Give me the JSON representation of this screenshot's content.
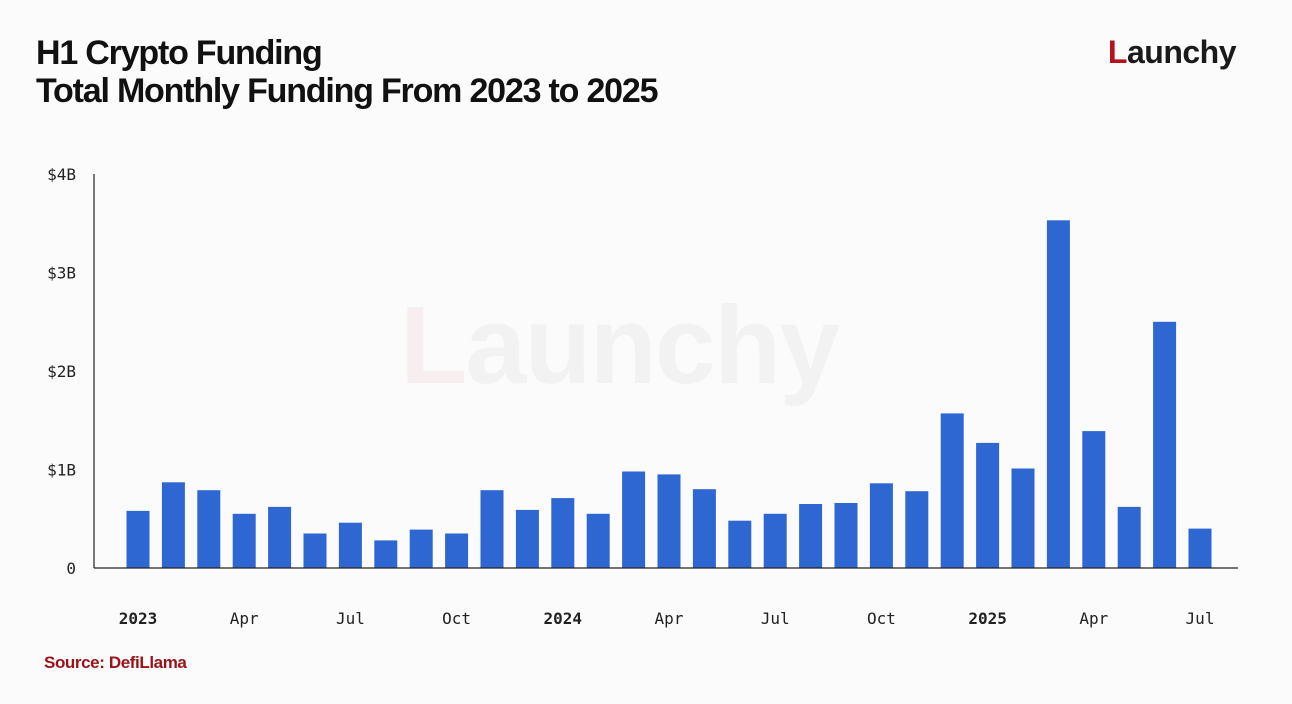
{
  "header": {
    "title_line1": "H1 Crypto Funding",
    "title_line2": "Total Monthly Funding From 2023 to 2025"
  },
  "logo": {
    "initial": "L",
    "rest": "aunchy"
  },
  "watermark": {
    "initial": "L",
    "rest": "aunchy"
  },
  "source": "Source: DefiLlama",
  "colors": {
    "bar": "#2e67d1",
    "axis": "#222222",
    "brand_red": "#b5121b"
  },
  "chart_data": {
    "type": "bar",
    "title": "H1 Crypto Funding",
    "subtitle": "Total Monthly Funding From 2023 to 2025",
    "xlabel": "",
    "ylabel": "",
    "ylim": [
      0,
      4
    ],
    "y_unit": "$B",
    "y_ticks": [
      {
        "value": 0,
        "label": "0"
      },
      {
        "value": 1,
        "label": "$1B"
      },
      {
        "value": 2,
        "label": "$2B"
      },
      {
        "value": 3,
        "label": "$3B"
      },
      {
        "value": 4,
        "label": "$4B"
      }
    ],
    "grid": false,
    "categories": [
      "2023-01",
      "2023-02",
      "2023-03",
      "2023-04",
      "2023-05",
      "2023-06",
      "2023-07",
      "2023-08",
      "2023-09",
      "2023-10",
      "2023-11",
      "2023-12",
      "2024-01",
      "2024-02",
      "2024-03",
      "2024-04",
      "2024-05",
      "2024-06",
      "2024-07",
      "2024-08",
      "2024-09",
      "2024-10",
      "2024-11",
      "2024-12",
      "2025-01",
      "2025-02",
      "2025-03",
      "2025-04",
      "2025-05",
      "2025-06",
      "2025-07"
    ],
    "values": [
      0.58,
      0.87,
      0.79,
      0.55,
      0.62,
      0.35,
      0.46,
      0.28,
      0.39,
      0.35,
      0.79,
      0.59,
      0.71,
      0.55,
      0.98,
      0.95,
      0.8,
      0.48,
      0.55,
      0.65,
      0.66,
      0.86,
      0.78,
      1.57,
      1.27,
      1.01,
      3.53,
      1.39,
      0.62,
      2.5,
      0.4
    ],
    "x_ticks": [
      {
        "index": 0,
        "label": "2023",
        "bold": true
      },
      {
        "index": 3,
        "label": "Apr",
        "bold": false
      },
      {
        "index": 6,
        "label": "Jul",
        "bold": false
      },
      {
        "index": 9,
        "label": "Oct",
        "bold": false
      },
      {
        "index": 12,
        "label": "2024",
        "bold": true
      },
      {
        "index": 15,
        "label": "Apr",
        "bold": false
      },
      {
        "index": 18,
        "label": "Jul",
        "bold": false
      },
      {
        "index": 21,
        "label": "Oct",
        "bold": false
      },
      {
        "index": 24,
        "label": "2025",
        "bold": true
      },
      {
        "index": 27,
        "label": "Apr",
        "bold": false
      },
      {
        "index": 30,
        "label": "Jul",
        "bold": false
      }
    ]
  }
}
